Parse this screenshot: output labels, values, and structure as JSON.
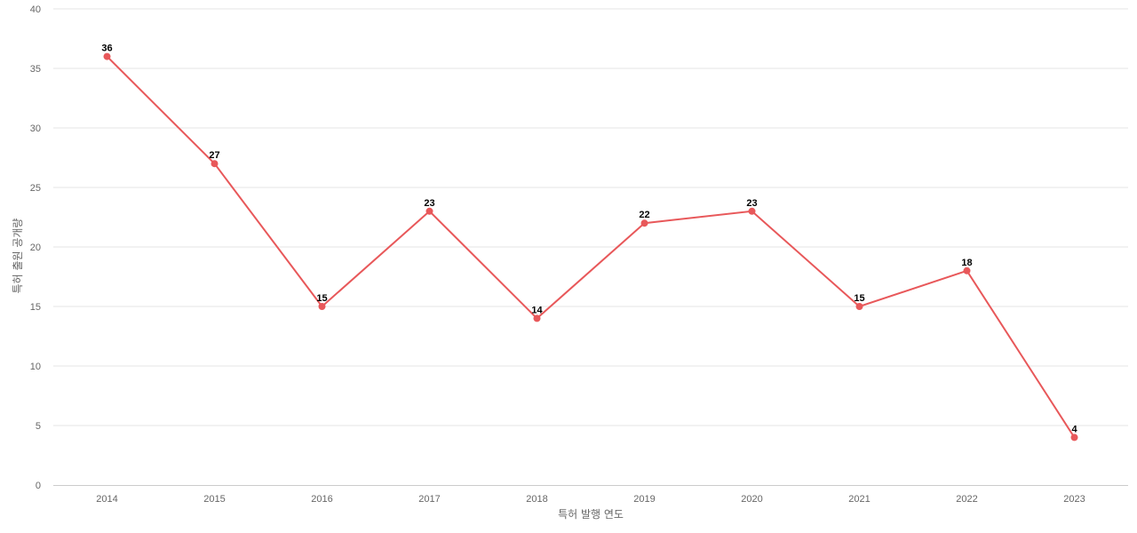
{
  "chart_data": {
    "type": "line",
    "title": "",
    "xlabel": "특허 발행 연도",
    "ylabel": "특허 출원 공개량",
    "categories": [
      "2014",
      "2015",
      "2016",
      "2017",
      "2018",
      "2019",
      "2020",
      "2021",
      "2022",
      "2023"
    ],
    "series": [
      {
        "values": [
          36,
          27,
          15,
          23,
          14,
          22,
          23,
          15,
          18,
          4
        ],
        "color": "#e8585a"
      }
    ],
    "ylim": [
      0,
      40
    ],
    "yticks": [
      0,
      5,
      10,
      15,
      20,
      25,
      30,
      35,
      40
    ],
    "grid": true,
    "legend": "none",
    "data_labels": true
  }
}
